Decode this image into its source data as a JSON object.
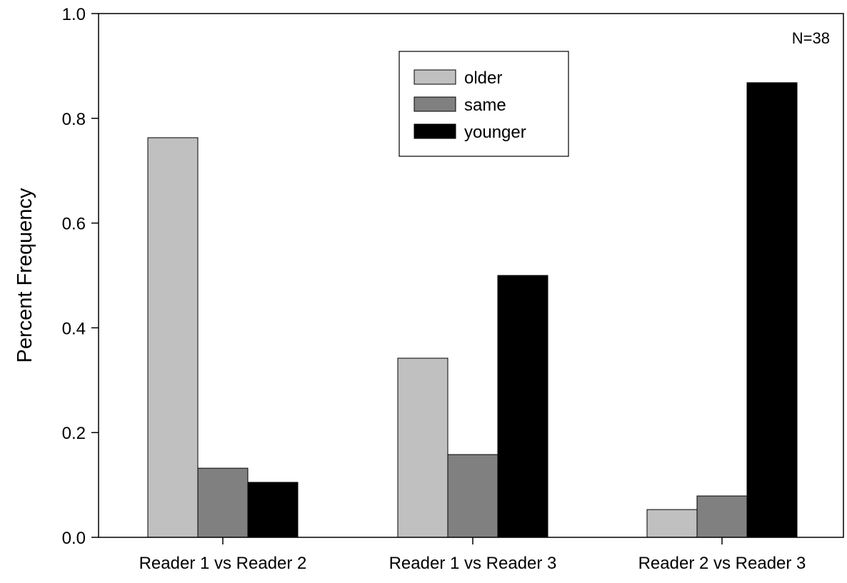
{
  "chart_data": {
    "type": "bar",
    "title": "",
    "xlabel": "",
    "ylabel": "Percent Frequency",
    "ylim": [
      0,
      1.0
    ],
    "yticks": [
      "0.0",
      "0.2",
      "0.4",
      "0.6",
      "0.8",
      "1.0"
    ],
    "categories": [
      "Reader 1 vs Reader 2",
      "Reader 1 vs Reader 3",
      "Reader 2 vs Reader 3"
    ],
    "series": [
      {
        "name": "older",
        "color": "#c0c0c0",
        "values": [
          0.763,
          0.342,
          0.053
        ]
      },
      {
        "name": "same",
        "color": "#808080",
        "values": [
          0.132,
          0.158,
          0.079
        ]
      },
      {
        "name": "younger",
        "color": "#000000",
        "values": [
          0.105,
          0.5,
          0.868
        ]
      }
    ],
    "legend_position": "top-center",
    "annotation": "N=38",
    "grid": false
  }
}
